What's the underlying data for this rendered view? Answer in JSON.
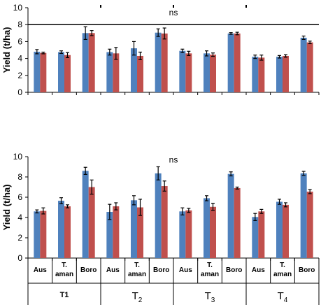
{
  "chart_data": [
    {
      "type": "bar",
      "panel": "top",
      "ylabel": "Yield (t/ha)",
      "ylim": [
        0,
        10
      ],
      "yticks": [
        "0",
        "2",
        "4",
        "6",
        "8",
        "10"
      ],
      "annotation": "ns",
      "reference_line": 8,
      "colors": [
        "#4F81BD",
        "#C0504D"
      ],
      "categories": [
        "Aus",
        "T. aman",
        "Boro",
        "Aus",
        "T. aman",
        "Boro",
        "Aus",
        "T. aman",
        "Boro",
        "Aus",
        "T. aman",
        "Boro"
      ],
      "series": [
        {
          "values": [
            4.8,
            4.75,
            7.0,
            4.75,
            5.2,
            7.05,
            4.9,
            4.6,
            6.95,
            4.2,
            4.2,
            6.45
          ],
          "errors": [
            0.25,
            0.15,
            0.75,
            0.35,
            0.8,
            0.45,
            0.2,
            0.3,
            0.1,
            0.2,
            0.15,
            0.2
          ]
        },
        {
          "values": [
            4.65,
            4.4,
            7.0,
            4.6,
            4.3,
            6.95,
            4.6,
            4.45,
            6.95,
            4.1,
            4.3,
            5.9
          ],
          "errors": [
            0.1,
            0.3,
            0.3,
            0.7,
            0.45,
            0.65,
            0.25,
            0.2,
            0.15,
            0.3,
            0.15,
            0.15
          ]
        }
      ]
    },
    {
      "type": "bar",
      "panel": "bottom",
      "ylabel": "Yield (t/ha)",
      "ylim": [
        0,
        10
      ],
      "yticks": [
        "0",
        "2",
        "4",
        "6",
        "8",
        "10"
      ],
      "annotation": "ns",
      "colors": [
        "#4F81BD",
        "#C0504D"
      ],
      "categories": [
        "Aus",
        "T. aman",
        "Boro",
        "Aus",
        "T. aman",
        "Boro",
        "Aus",
        "T. aman",
        "Boro",
        "Aus",
        "T. aman",
        "Boro"
      ],
      "series": [
        {
          "values": [
            4.6,
            5.65,
            8.6,
            4.55,
            5.7,
            8.35,
            4.6,
            5.9,
            8.3,
            4.05,
            5.55,
            8.35
          ],
          "errors": [
            0.15,
            0.3,
            0.35,
            0.75,
            0.45,
            0.65,
            0.35,
            0.25,
            0.2,
            0.35,
            0.25,
            0.2
          ]
        },
        {
          "values": [
            4.65,
            5.1,
            7.0,
            5.1,
            5.0,
            7.1,
            4.7,
            5.05,
            6.9,
            4.6,
            5.25,
            6.55
          ],
          "errors": [
            0.3,
            0.15,
            0.7,
            0.35,
            0.8,
            0.5,
            0.2,
            0.35,
            0.1,
            0.2,
            0.2,
            0.2
          ]
        }
      ]
    }
  ],
  "groups": [
    {
      "main": "T1",
      "sub": ""
    },
    {
      "main": "T",
      "sub": "2"
    },
    {
      "main": "T",
      "sub": "3"
    },
    {
      "main": "T",
      "sub": "4"
    }
  ],
  "category_labels": [
    {
      "l1": "Aus",
      "l2": ""
    },
    {
      "l1": "T.",
      "l2": "aman"
    },
    {
      "l1": "Boro",
      "l2": ""
    }
  ]
}
